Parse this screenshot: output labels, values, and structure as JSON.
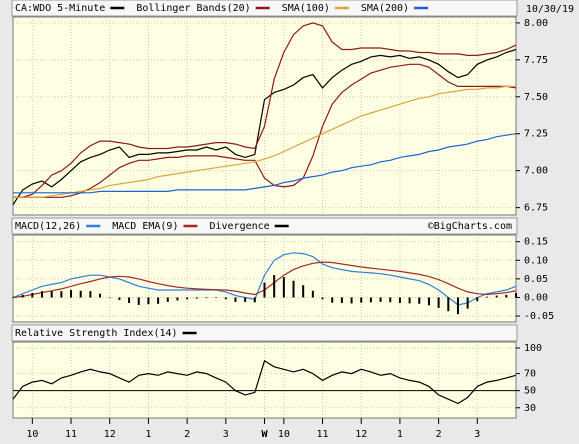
{
  "date": "10/30/19",
  "x_axis": {
    "x": [
      0,
      0.25,
      0.5,
      0.75,
      1,
      1.25,
      1.5,
      1.75,
      2,
      2.25,
      2.5,
      2.75,
      3,
      3.25,
      3.5,
      3.75,
      4,
      4.25,
      4.5,
      4.75,
      5,
      5.25,
      5.5,
      5.75,
      6,
      6.25,
      6.5,
      6.75,
      7,
      7.25,
      7.5,
      7.75,
      8,
      8.25,
      8.5,
      8.75,
      9,
      9.25,
      9.5,
      9.75,
      10,
      10.25,
      10.5,
      10.75,
      11,
      11.25,
      11.5,
      11.75,
      12,
      12.25,
      12.5,
      12.75,
      13
    ],
    "xlim": [
      0,
      13
    ],
    "xticks": [
      {
        "value": 0.5,
        "label": "10"
      },
      {
        "value": 1.5,
        "label": "11"
      },
      {
        "value": 2.5,
        "label": "12"
      },
      {
        "value": 3.5,
        "label": "1"
      },
      {
        "value": 4.5,
        "label": "2"
      },
      {
        "value": 5.5,
        "label": "3"
      },
      {
        "value": 6.5,
        "label": "W"
      },
      {
        "value": 7,
        "label": "10"
      },
      {
        "value": 8,
        "label": "11"
      },
      {
        "value": 9,
        "label": "12"
      },
      {
        "value": 10,
        "label": "1"
      },
      {
        "value": 11,
        "label": "2"
      },
      {
        "value": 12,
        "label": "3"
      }
    ]
  },
  "chart_data": [
    {
      "type": "line",
      "ylim": [
        6.7,
        8.04
      ],
      "yticks": [
        6.75,
        {
          "value": 7,
          "label": "7.00"
        },
        7.25,
        {
          "value": 7.5,
          "label": "7.50"
        },
        7.75,
        {
          "value": 8,
          "label": "8.00"
        }
      ],
      "grid": true,
      "series": [
        {
          "name": "CA:WDO 5-Minute",
          "color": "#000000",
          "values": [
            6.77,
            6.87,
            6.91,
            6.93,
            6.89,
            6.94,
            7.0,
            7.06,
            7.09,
            7.11,
            7.14,
            7.16,
            7.09,
            7.11,
            7.11,
            7.12,
            7.12,
            7.13,
            7.14,
            7.14,
            7.16,
            7.14,
            7.16,
            7.11,
            7.09,
            7.11,
            7.48,
            7.53,
            7.55,
            7.58,
            7.63,
            7.65,
            7.56,
            7.63,
            7.68,
            7.72,
            7.74,
            7.77,
            7.78,
            7.77,
            7.78,
            7.76,
            7.77,
            7.75,
            7.72,
            7.67,
            7.63,
            7.65,
            7.72,
            7.75,
            7.77,
            7.8,
            7.82
          ]
        },
        {
          "name": "Bollinger Bands(20)",
          "color": "#8b1a1a",
          "upper": [
            6.82,
            6.82,
            6.84,
            6.9,
            6.97,
            7.0,
            7.05,
            7.12,
            7.17,
            7.2,
            7.2,
            7.19,
            7.18,
            7.16,
            7.15,
            7.15,
            7.15,
            7.16,
            7.16,
            7.17,
            7.18,
            7.19,
            7.19,
            7.18,
            7.16,
            7.15,
            7.3,
            7.62,
            7.8,
            7.92,
            7.98,
            8.0,
            7.98,
            7.87,
            7.82,
            7.82,
            7.83,
            7.83,
            7.83,
            7.82,
            7.81,
            7.81,
            7.8,
            7.8,
            7.79,
            7.79,
            7.79,
            7.78,
            7.78,
            7.79,
            7.8,
            7.82,
            7.85
          ],
          "lower": [
            6.82,
            6.82,
            6.82,
            6.82,
            6.82,
            6.82,
            6.83,
            6.85,
            6.88,
            6.92,
            6.97,
            7.02,
            7.05,
            7.07,
            7.07,
            7.08,
            7.09,
            7.09,
            7.1,
            7.1,
            7.1,
            7.1,
            7.09,
            7.08,
            7.07,
            7.07,
            6.95,
            6.9,
            6.89,
            6.9,
            6.95,
            7.1,
            7.3,
            7.45,
            7.53,
            7.58,
            7.62,
            7.66,
            7.68,
            7.7,
            7.71,
            7.72,
            7.72,
            7.7,
            7.65,
            7.6,
            7.57,
            7.57,
            7.57,
            7.57,
            7.57,
            7.57,
            7.56
          ]
        },
        {
          "name": "SMA(100)",
          "color": "#d9a441",
          "values": [
            6.82,
            6.82,
            6.82,
            6.82,
            6.83,
            6.84,
            6.85,
            6.86,
            6.87,
            6.88,
            6.9,
            6.91,
            6.92,
            6.93,
            6.94,
            6.96,
            6.97,
            6.98,
            6.99,
            7.0,
            7.01,
            7.02,
            7.03,
            7.04,
            7.05,
            7.06,
            7.08,
            7.1,
            7.13,
            7.16,
            7.19,
            7.22,
            7.25,
            7.28,
            7.31,
            7.34,
            7.37,
            7.39,
            7.41,
            7.43,
            7.45,
            7.47,
            7.49,
            7.5,
            7.52,
            7.53,
            7.54,
            7.55,
            7.55,
            7.56,
            7.56,
            7.57,
            7.57
          ]
        },
        {
          "name": "SMA(200)",
          "color": "#1f63d6",
          "values": [
            6.85,
            6.85,
            6.85,
            6.85,
            6.85,
            6.85,
            6.85,
            6.85,
            6.85,
            6.86,
            6.86,
            6.86,
            6.86,
            6.86,
            6.86,
            6.86,
            6.86,
            6.87,
            6.87,
            6.87,
            6.87,
            6.87,
            6.87,
            6.87,
            6.87,
            6.88,
            6.89,
            6.9,
            6.92,
            6.93,
            6.95,
            6.96,
            6.97,
            6.99,
            7.0,
            7.02,
            7.03,
            7.04,
            7.06,
            7.07,
            7.09,
            7.1,
            7.11,
            7.13,
            7.14,
            7.16,
            7.17,
            7.18,
            7.2,
            7.21,
            7.23,
            7.24,
            7.25
          ]
        }
      ]
    },
    {
      "type": "line",
      "watermark": "©BigCharts.com",
      "ylim": [
        -0.066,
        0.168
      ],
      "yticks": [
        -0.05,
        {
          "value": 0,
          "label": "0.00"
        },
        0.05,
        {
          "value": 0.1,
          "label": "0.10"
        },
        0.15
      ],
      "grid": true,
      "series": [
        {
          "name": "MACD(12,26)",
          "color": "#2f80d8",
          "values": [
            0.0,
            0.01,
            0.02,
            0.03,
            0.035,
            0.04,
            0.05,
            0.055,
            0.06,
            0.06,
            0.055,
            0.05,
            0.04,
            0.03,
            0.025,
            0.02,
            0.02,
            0.02,
            0.02,
            0.02,
            0.02,
            0.02,
            0.015,
            0.005,
            0.0,
            -0.005,
            0.06,
            0.1,
            0.115,
            0.12,
            0.118,
            0.11,
            0.09,
            0.08,
            0.075,
            0.07,
            0.068,
            0.066,
            0.064,
            0.06,
            0.055,
            0.05,
            0.045,
            0.035,
            0.02,
            0.0,
            -0.02,
            -0.015,
            0.0,
            0.01,
            0.015,
            0.02,
            0.03
          ]
        },
        {
          "name": "MACD EMA(9)",
          "color": "#a52a2a",
          "values": [
            0.0,
            0.003,
            0.008,
            0.013,
            0.018,
            0.023,
            0.03,
            0.037,
            0.043,
            0.05,
            0.055,
            0.057,
            0.055,
            0.05,
            0.043,
            0.037,
            0.032,
            0.028,
            0.025,
            0.023,
            0.022,
            0.021,
            0.02,
            0.017,
            0.012,
            0.008,
            0.02,
            0.04,
            0.06,
            0.075,
            0.085,
            0.092,
            0.095,
            0.094,
            0.09,
            0.086,
            0.082,
            0.079,
            0.076,
            0.073,
            0.07,
            0.066,
            0.062,
            0.056,
            0.048,
            0.037,
            0.025,
            0.015,
            0.01,
            0.008,
            0.01,
            0.013,
            0.018
          ]
        },
        {
          "name": "Divergence",
          "color": "#000000",
          "style": "bar",
          "values": [
            0,
            0.007,
            0.012,
            0.017,
            0.017,
            0.017,
            0.02,
            0.018,
            0.017,
            0.01,
            0,
            -0.007,
            -0.015,
            -0.02,
            -0.018,
            -0.017,
            -0.012,
            -0.008,
            -0.005,
            -0.003,
            -0.002,
            -0.001,
            -0.005,
            -0.012,
            -0.012,
            -0.013,
            0.04,
            0.06,
            0.055,
            0.045,
            0.033,
            0.018,
            -0.005,
            -0.014,
            -0.015,
            -0.016,
            -0.014,
            -0.013,
            -0.012,
            -0.013,
            -0.015,
            -0.016,
            -0.017,
            -0.021,
            -0.028,
            -0.037,
            -0.045,
            -0.03,
            -0.01,
            0.002,
            0.005,
            0.007,
            0.012
          ]
        }
      ]
    },
    {
      "type": "line",
      "ylim": [
        18,
        107
      ],
      "yticks": [
        30,
        50,
        70,
        100
      ],
      "reference_line": 50,
      "grid": true,
      "series": [
        {
          "name": "Relative Strength Index(14)",
          "color": "#000000",
          "values": [
            40,
            55,
            60,
            62,
            58,
            65,
            68,
            72,
            75,
            72,
            70,
            65,
            60,
            68,
            70,
            68,
            72,
            70,
            68,
            72,
            70,
            65,
            60,
            50,
            45,
            48,
            85,
            78,
            75,
            72,
            75,
            70,
            62,
            68,
            72,
            70,
            75,
            72,
            68,
            70,
            65,
            62,
            60,
            55,
            45,
            40,
            35,
            42,
            55,
            60,
            62,
            65,
            68
          ]
        }
      ]
    }
  ]
}
